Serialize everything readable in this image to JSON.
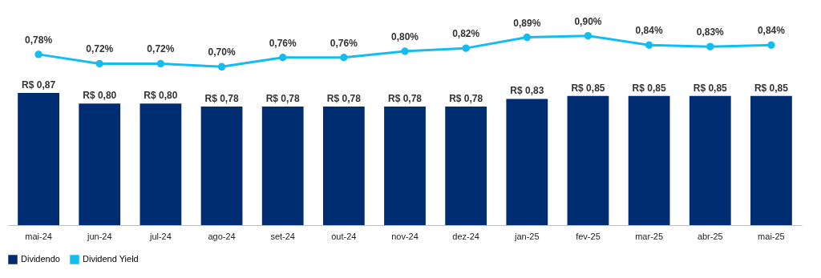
{
  "chart_data": [
    {
      "type": "line",
      "categories": [
        "mai-24",
        "jun-24",
        "jul-24",
        "ago-24",
        "set-24",
        "out-24",
        "nov-24",
        "dez-24",
        "jan-25",
        "fev-25",
        "mar-25",
        "abr-25",
        "mai-25"
      ],
      "series": [
        {
          "name": "Dividend Yield",
          "color": "#14bdf0",
          "values": [
            0.78,
            0.72,
            0.72,
            0.7,
            0.76,
            0.76,
            0.8,
            0.82,
            0.89,
            0.9,
            0.84,
            0.83,
            0.84
          ],
          "value_labels": [
            "0,78%",
            "0,72%",
            "0,72%",
            "0,70%",
            "0,76%",
            "0,76%",
            "0,80%",
            "0,82%",
            "0,89%",
            "0,90%",
            "0,84%",
            "0,83%",
            "0,84%"
          ]
        }
      ],
      "marker": "circle",
      "tick_labels": false,
      "grid": false,
      "legend": "bottom"
    },
    {
      "type": "bar",
      "categories": [
        "mai-24",
        "jun-24",
        "jul-24",
        "ago-24",
        "set-24",
        "out-24",
        "nov-24",
        "dez-24",
        "jan-25",
        "fev-25",
        "mar-25",
        "abr-25",
        "mai-25"
      ],
      "series": [
        {
          "name": "Dividendo",
          "color": "#002d72",
          "values": [
            0.87,
            0.8,
            0.8,
            0.78,
            0.78,
            0.78,
            0.78,
            0.78,
            0.83,
            0.85,
            0.85,
            0.85,
            0.85
          ],
          "value_labels": [
            "R$ 0,87",
            "R$ 0,80",
            "R$ 0,80",
            "R$ 0,78",
            "R$ 0,78",
            "R$ 0,78",
            "R$ 0,78",
            "R$ 0,78",
            "R$ 0,83",
            "R$ 0,85",
            "R$ 0,85",
            "R$ 0,85",
            "R$ 0,85"
          ]
        }
      ],
      "tick_labels": "x",
      "grid": false,
      "legend": "bottom"
    }
  ]
}
